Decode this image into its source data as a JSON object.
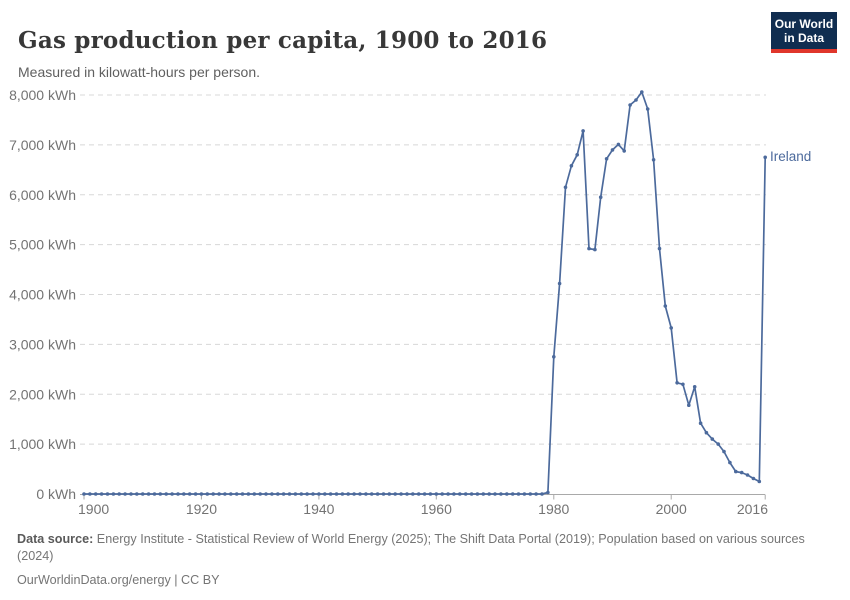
{
  "header": {
    "title": "Gas production per capita, 1900 to 2016",
    "subtitle": "Measured in kilowatt-hours per person.",
    "logo": {
      "line1": "Our World",
      "line2": "in Data"
    }
  },
  "chart_data": {
    "type": "line",
    "title": "Gas production per capita, 1900 to 2016",
    "unit": "kilowatt-hours per person",
    "xlabel": "",
    "ylabel": "",
    "xlim": [
      1900,
      2016
    ],
    "ylim": [
      0,
      8300
    ],
    "grid": "horizontal dashed gridlines",
    "legend": "none (series labeled directly at line end)",
    "end_label": "Ireland",
    "x_ticks": [
      1900,
      1920,
      1940,
      1960,
      1980,
      2000,
      2016
    ],
    "x_tick_labels": [
      "1900",
      "1920",
      "1940",
      "1960",
      "1980",
      "2000",
      "2016"
    ],
    "y_ticks": [
      0,
      1000,
      2000,
      3000,
      4000,
      5000,
      6000,
      7000,
      8000
    ],
    "y_tick_labels": [
      "0 kWh",
      "1,000 kWh",
      "2,000 kWh",
      "3,000 kWh",
      "4,000 kWh",
      "5,000 kWh",
      "6,000 kWh",
      "7,000 kWh",
      "8,000 kWh"
    ],
    "colors": {
      "line": "#4c6a9c",
      "grid": "#d8d8d8",
      "axis": "#a9a9a9",
      "tick_text": "#737373",
      "title_text": "#383838",
      "subtitle_text": "#606060",
      "footer_text": "#757575",
      "logo_bg": "#102d50",
      "logo_accent": "#e0362b",
      "end_label": "#4c6a9c"
    },
    "series": [
      {
        "name": "Ireland",
        "color": "#4c6a9c",
        "x": [
          1900,
          1901,
          1902,
          1903,
          1904,
          1905,
          1906,
          1907,
          1908,
          1909,
          1910,
          1911,
          1912,
          1913,
          1914,
          1915,
          1916,
          1917,
          1918,
          1919,
          1920,
          1921,
          1922,
          1923,
          1924,
          1925,
          1926,
          1927,
          1928,
          1929,
          1930,
          1931,
          1932,
          1933,
          1934,
          1935,
          1936,
          1937,
          1938,
          1939,
          1940,
          1941,
          1942,
          1943,
          1944,
          1945,
          1946,
          1947,
          1948,
          1949,
          1950,
          1951,
          1952,
          1953,
          1954,
          1955,
          1956,
          1957,
          1958,
          1959,
          1960,
          1961,
          1962,
          1963,
          1964,
          1965,
          1966,
          1967,
          1968,
          1969,
          1970,
          1971,
          1972,
          1973,
          1974,
          1975,
          1976,
          1977,
          1978,
          1979,
          1980,
          1981,
          1982,
          1983,
          1984,
          1985,
          1986,
          1987,
          1988,
          1989,
          1990,
          1991,
          1992,
          1993,
          1994,
          1995,
          1996,
          1997,
          1998,
          1999,
          2000,
          2001,
          2002,
          2003,
          2004,
          2005,
          2006,
          2007,
          2008,
          2009,
          2010,
          2011,
          2012,
          2013,
          2014,
          2015,
          2016
        ],
        "y": [
          0,
          0,
          0,
          0,
          0,
          0,
          0,
          0,
          0,
          0,
          0,
          0,
          0,
          0,
          0,
          0,
          0,
          0,
          0,
          0,
          0,
          0,
          0,
          0,
          0,
          0,
          0,
          0,
          0,
          0,
          0,
          0,
          0,
          0,
          0,
          0,
          0,
          0,
          0,
          0,
          0,
          0,
          0,
          0,
          0,
          0,
          0,
          0,
          0,
          0,
          0,
          0,
          0,
          0,
          0,
          0,
          0,
          0,
          0,
          0,
          0,
          0,
          0,
          0,
          0,
          0,
          0,
          0,
          0,
          0,
          0,
          0,
          0,
          0,
          0,
          0,
          0,
          0,
          0,
          30,
          2750,
          4220,
          6150,
          6580,
          6800,
          7280,
          4920,
          4900,
          5950,
          6720,
          6900,
          7010,
          6880,
          7800,
          7900,
          8060,
          7720,
          6700,
          4920,
          3770,
          3330,
          2230,
          2200,
          1780,
          2150,
          1420,
          1230,
          1100,
          1000,
          850,
          630,
          450,
          430,
          380,
          310,
          250,
          6750
        ]
      }
    ]
  },
  "footer": {
    "source_label": "Data source:",
    "source_text": " Energy Institute - Statistical Review of World Energy (2025); The Shift Data Portal (2019); Population based on various sources (2024)",
    "citation": "OurWorldinData.org/energy | CC BY"
  }
}
